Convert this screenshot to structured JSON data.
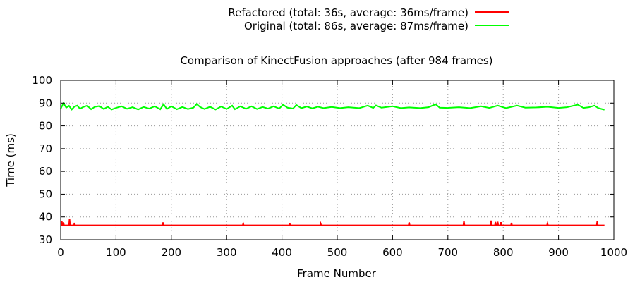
{
  "chart_data": {
    "type": "line",
    "title": "Comparison of KinectFusion approaches (after 984 frames)",
    "xlabel": "Frame Number",
    "ylabel": "Time (ms)",
    "xlim": [
      0,
      1000
    ],
    "ylim": [
      30,
      100
    ],
    "xticks": [
      "0",
      "100",
      "200",
      "300",
      "400",
      "500",
      "600",
      "700",
      "800",
      "900",
      "1000"
    ],
    "yticks": [
      "30",
      "40",
      "50",
      "60",
      "70",
      "80",
      "90",
      "100"
    ],
    "grid": true,
    "legend_position": "top-right, outside plot",
    "series": [
      {
        "name": "Refactored (total: 36s, average: 36ms/frame)",
        "color": "#ff0000",
        "x_start": 0,
        "x_end": 983,
        "baseline": 36.3,
        "spikes": [
          [
            2,
            38.1
          ],
          [
            5,
            37.6
          ],
          [
            16,
            39.1
          ],
          [
            25,
            37.4
          ],
          [
            185,
            37.6
          ],
          [
            330,
            37.1
          ],
          [
            414,
            37.3
          ],
          [
            470,
            37.1
          ],
          [
            630,
            37.6
          ],
          [
            729,
            38.2
          ],
          [
            778,
            38.4
          ],
          [
            786,
            37.8
          ],
          [
            790,
            37.9
          ],
          [
            796,
            37.7
          ],
          [
            815,
            37.4
          ],
          [
            880,
            37.1
          ],
          [
            970,
            38.1
          ]
        ]
      },
      {
        "name": "Original (total: 86s, average: 87ms/frame)",
        "color": "#00ff00",
        "x_start": 0,
        "x_end": 983,
        "baseline": 87.7,
        "points": [
          [
            0,
            87.5
          ],
          [
            5,
            90.0
          ],
          [
            10,
            88.0
          ],
          [
            15,
            88.8
          ],
          [
            20,
            87.2
          ],
          [
            25,
            88.5
          ],
          [
            30,
            88.9
          ],
          [
            35,
            87.5
          ],
          [
            40,
            88.2
          ],
          [
            48,
            88.9
          ],
          [
            55,
            87.3
          ],
          [
            62,
            88.4
          ],
          [
            70,
            88.7
          ],
          [
            78,
            87.4
          ],
          [
            85,
            88.4
          ],
          [
            92,
            87.2
          ],
          [
            100,
            87.9
          ],
          [
            110,
            88.6
          ],
          [
            120,
            87.5
          ],
          [
            130,
            88.2
          ],
          [
            140,
            87.2
          ],
          [
            150,
            88.3
          ],
          [
            160,
            87.6
          ],
          [
            170,
            88.6
          ],
          [
            180,
            87.3
          ],
          [
            186,
            89.5
          ],
          [
            192,
            87.4
          ],
          [
            200,
            88.6
          ],
          [
            210,
            87.3
          ],
          [
            220,
            88.3
          ],
          [
            230,
            87.4
          ],
          [
            240,
            88.0
          ],
          [
            246,
            89.6
          ],
          [
            252,
            88.3
          ],
          [
            260,
            87.4
          ],
          [
            270,
            88.4
          ],
          [
            280,
            87.2
          ],
          [
            290,
            88.5
          ],
          [
            300,
            87.4
          ],
          [
            310,
            88.9
          ],
          [
            315,
            87.3
          ],
          [
            325,
            88.6
          ],
          [
            335,
            87.5
          ],
          [
            345,
            88.6
          ],
          [
            355,
            87.4
          ],
          [
            365,
            88.3
          ],
          [
            375,
            87.6
          ],
          [
            385,
            88.6
          ],
          [
            395,
            87.6
          ],
          [
            402,
            89.3
          ],
          [
            410,
            88.0
          ],
          [
            420,
            87.6
          ],
          [
            426,
            89.2
          ],
          [
            435,
            87.8
          ],
          [
            445,
            88.5
          ],
          [
            455,
            87.7
          ],
          [
            465,
            88.4
          ],
          [
            475,
            87.8
          ],
          [
            490,
            88.3
          ],
          [
            505,
            87.8
          ],
          [
            520,
            88.2
          ],
          [
            540,
            87.8
          ],
          [
            555,
            88.9
          ],
          [
            565,
            87.9
          ],
          [
            570,
            89.0
          ],
          [
            580,
            88.0
          ],
          [
            600,
            88.6
          ],
          [
            615,
            87.8
          ],
          [
            630,
            88.1
          ],
          [
            650,
            87.8
          ],
          [
            665,
            88.2
          ],
          [
            678,
            89.5
          ],
          [
            685,
            88.0
          ],
          [
            700,
            87.9
          ],
          [
            720,
            88.2
          ],
          [
            740,
            87.8
          ],
          [
            760,
            88.6
          ],
          [
            775,
            87.9
          ],
          [
            790,
            88.9
          ],
          [
            805,
            87.8
          ],
          [
            825,
            88.9
          ],
          [
            840,
            88.0
          ],
          [
            860,
            88.1
          ],
          [
            880,
            88.4
          ],
          [
            900,
            87.9
          ],
          [
            915,
            88.2
          ],
          [
            935,
            89.3
          ],
          [
            945,
            87.9
          ],
          [
            955,
            88.2
          ],
          [
            965,
            88.9
          ],
          [
            972,
            87.8
          ],
          [
            983,
            87.1
          ]
        ]
      }
    ]
  }
}
